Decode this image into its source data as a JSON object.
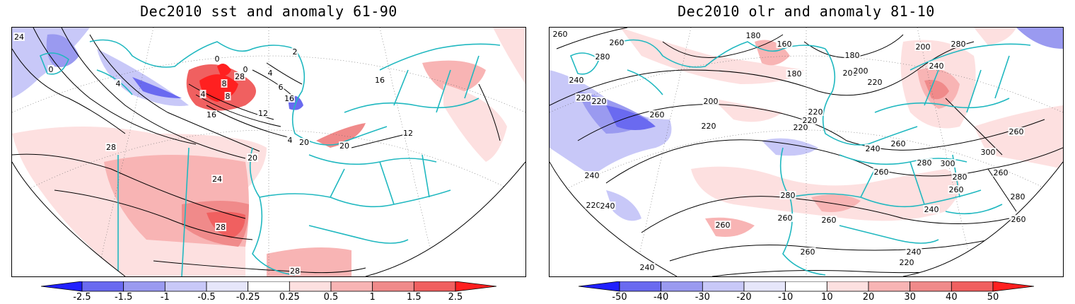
{
  "panels": [
    {
      "title": "Dec2010 sst and anomaly 61-90",
      "contour_labels": [
        "24",
        "0",
        "4",
        "0",
        "0",
        "4",
        "2",
        "6",
        "8",
        "4",
        "8",
        "12",
        "16",
        "16",
        "20",
        "20",
        "20",
        "24",
        "28",
        "28",
        "28",
        "28",
        "4",
        "16",
        "12"
      ],
      "colorbar": {
        "colors": [
          "#2020ff",
          "#6a6af0",
          "#9a9af0",
          "#c8c8f8",
          "#e6e6fa",
          "#ffffff",
          "#fde0e0",
          "#f8b4b4",
          "#f08a8a",
          "#f06060",
          "#ff2020"
        ],
        "labels": [
          "-2.5",
          "-1.5",
          "-1",
          "-0.5",
          "-0.25",
          "0.25",
          "0.5",
          "1",
          "1.5",
          "2.5"
        ]
      }
    },
    {
      "title": "Dec2010 olr and anomaly 81-10",
      "contour_labels": [
        "260",
        "260",
        "280",
        "180",
        "160",
        "180",
        "200",
        "220",
        "200",
        "280",
        "240",
        "240",
        "220",
        "220",
        "200",
        "180",
        "200",
        "220",
        "220",
        "260",
        "220",
        "220",
        "240",
        "260",
        "280",
        "260",
        "300",
        "300",
        "280",
        "260",
        "260",
        "280",
        "260",
        "260",
        "240",
        "220",
        "240",
        "240",
        "260",
        "280",
        "260",
        "260",
        "240",
        "220",
        "240",
        "260"
      ],
      "colorbar": {
        "colors": [
          "#2020ff",
          "#6a6af0",
          "#9a9af0",
          "#c8c8f8",
          "#e6e6fa",
          "#ffffff",
          "#fde0e0",
          "#f8b4b4",
          "#f08a8a",
          "#f06060",
          "#ff2020"
        ],
        "labels": [
          "-50",
          "-40",
          "-30",
          "-20",
          "-10",
          "10",
          "20",
          "30",
          "40",
          "50"
        ]
      }
    }
  ]
}
